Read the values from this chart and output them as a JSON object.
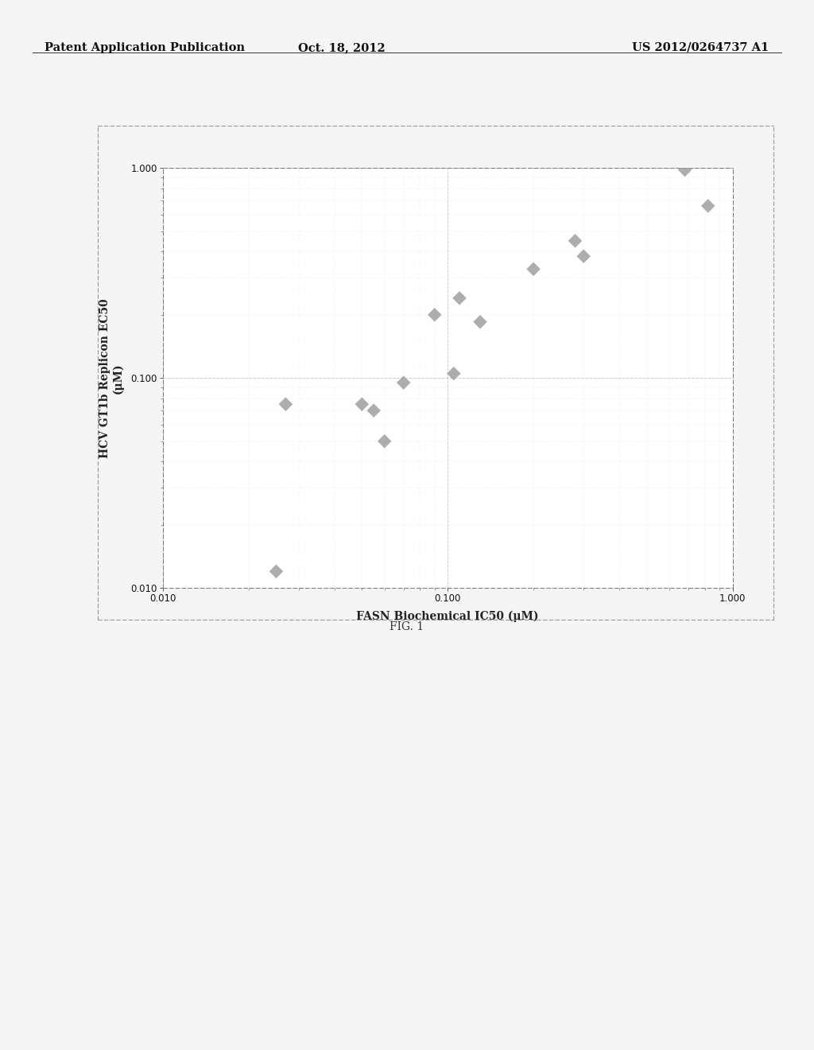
{
  "title_left": "Patent Application Publication",
  "title_center": "Oct. 18, 2012",
  "title_right": "US 2012/0264737 A1",
  "xlabel": "FASN Biochemical IC50 (μM)",
  "ylabel": "HCV GT1b Replicon EC50\n(μM)",
  "fig_label": "FIG. 1",
  "xlim": [
    0.01,
    1.0
  ],
  "ylim": [
    0.01,
    1.0
  ],
  "xtick_labels": [
    "0.010",
    "0.100",
    "1.000"
  ],
  "ytick_labels": [
    "0.010",
    "0.100",
    "1.000"
  ],
  "data_x": [
    0.025,
    0.027,
    0.05,
    0.055,
    0.06,
    0.07,
    0.09,
    0.105,
    0.11,
    0.13,
    0.2,
    0.28,
    0.3,
    0.68,
    0.82
  ],
  "data_y": [
    0.012,
    0.075,
    0.075,
    0.07,
    0.05,
    0.095,
    0.2,
    0.105,
    0.24,
    0.185,
    0.33,
    0.45,
    0.38,
    0.98,
    0.66
  ],
  "marker_color": "#999999",
  "marker_size": 80,
  "background_color": "#f5f5f5",
  "plot_bg_color": "#ffffff",
  "grid_color": "#cccccc",
  "header_fontsize": 10.5,
  "axis_label_fontsize": 10,
  "tick_label_fontsize": 8.5,
  "fig_label_fontsize": 10
}
